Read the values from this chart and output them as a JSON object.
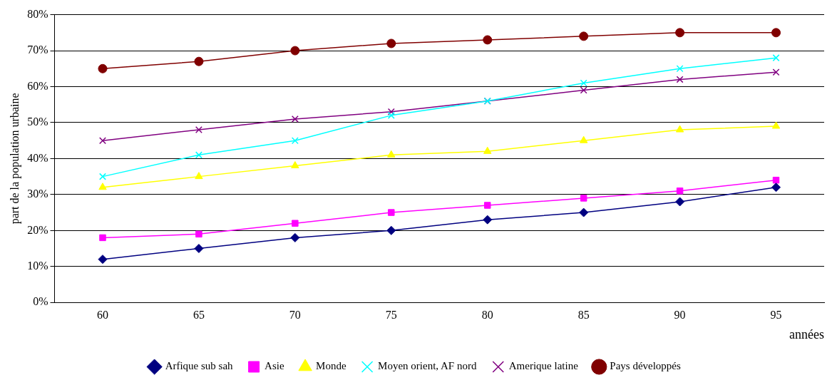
{
  "chart_data": {
    "type": "line",
    "ylabel": "part de la population urbaine",
    "xlabel": "années",
    "categories": [
      "60",
      "65",
      "70",
      "75",
      "80",
      "85",
      "90",
      "95"
    ],
    "series": [
      {
        "name": "Arfique sub sah",
        "color": "#000080",
        "marker": "diamond",
        "values": [
          12,
          15,
          18,
          20,
          23,
          25,
          28,
          32
        ]
      },
      {
        "name": "Asie",
        "color": "#ff00ff",
        "marker": "square",
        "values": [
          18,
          19,
          22,
          25,
          27,
          29,
          31,
          34
        ]
      },
      {
        "name": "Monde",
        "color": "#ffff00",
        "marker": "triangle",
        "values": [
          32,
          35,
          38,
          41,
          42,
          45,
          48,
          49
        ]
      },
      {
        "name": "Moyen orient, AF nord",
        "color": "#00ffff",
        "marker": "cross",
        "values": [
          35,
          41,
          45,
          52,
          56,
          61,
          65,
          68
        ]
      },
      {
        "name": "Amerique latine",
        "color": "#800080",
        "marker": "cross",
        "values": [
          45,
          48,
          51,
          53,
          56,
          59,
          62,
          64
        ]
      },
      {
        "name": "Pays développés",
        "color": "#800000",
        "marker": "circle",
        "values": [
          65,
          67,
          70,
          72,
          73,
          74,
          75,
          75
        ]
      }
    ],
    "ylim": [
      0,
      80
    ],
    "yticks": [
      {
        "value": 0,
        "label": "0%"
      },
      {
        "value": 10,
        "label": "10%"
      },
      {
        "value": 20,
        "label": "20%"
      },
      {
        "value": 30,
        "label": "30%"
      },
      {
        "value": 40,
        "label": "40%"
      },
      {
        "value": 50,
        "label": "50%"
      },
      {
        "value": 60,
        "label": "60%"
      },
      {
        "value": 70,
        "label": "70%"
      },
      {
        "value": 80,
        "label": "80%"
      }
    ],
    "grid": "y",
    "legend": "bottom",
    "line_style": "solid"
  }
}
